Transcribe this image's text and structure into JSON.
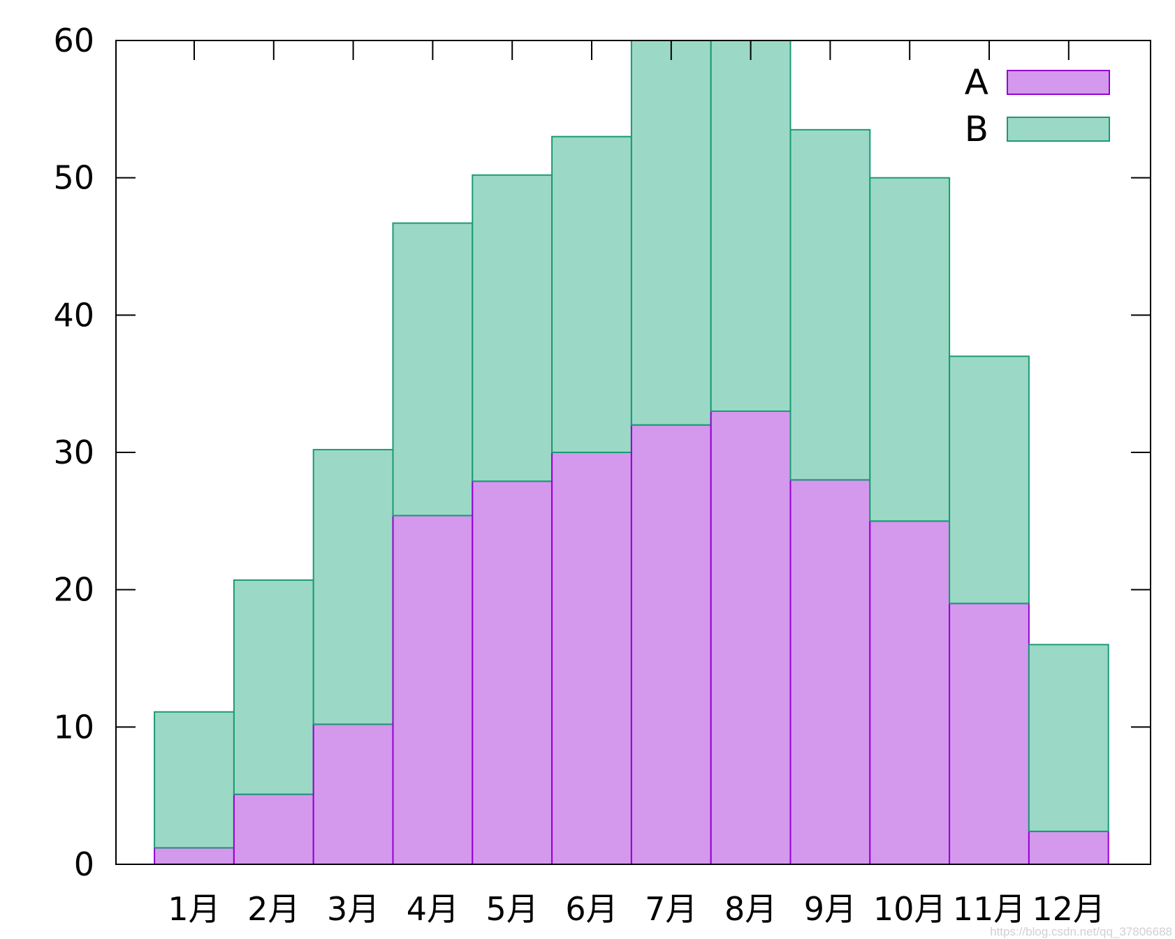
{
  "chart_data": {
    "type": "bar",
    "stacked": true,
    "categories": [
      "1月",
      "2月",
      "3月",
      "4月",
      "5月",
      "6月",
      "7月",
      "8月",
      "9月",
      "10月",
      "11月",
      "12月"
    ],
    "series": [
      {
        "name": "A",
        "color": "#d499ed",
        "edge_color": "#9400d3",
        "values": [
          1.2,
          5.1,
          10.2,
          25.4,
          27.9,
          30.0,
          32.0,
          33.0,
          28.0,
          25.0,
          19.0,
          2.4
        ]
      },
      {
        "name": "B",
        "color": "#9bd9c6",
        "edge_color": "#1a9a74",
        "values": [
          9.9,
          15.6,
          20.0,
          21.3,
          22.3,
          23.0,
          28.0,
          27.0,
          25.5,
          25.0,
          18.0,
          13.6
        ]
      }
    ],
    "title": "",
    "xlabel": "",
    "ylabel": "",
    "ylim": [
      0,
      60
    ],
    "yticks": [
      "0",
      "10",
      "20",
      "30",
      "40",
      "50",
      "60"
    ],
    "grid": false,
    "legend_position": "top-right"
  },
  "watermark": "https://blog.csdn.net/qq_37806688"
}
